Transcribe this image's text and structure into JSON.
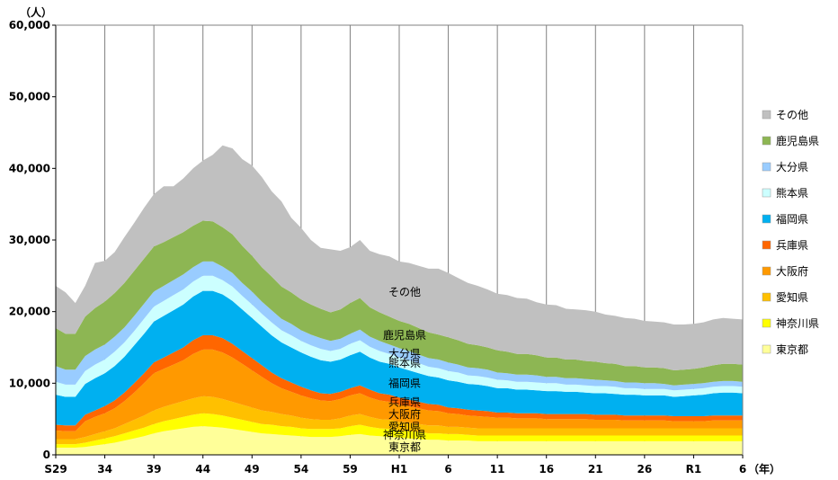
{
  "chart_data": {
    "type": "area",
    "stacked": true,
    "y_unit": "（人）",
    "x_unit": "（年）",
    "ylim": [
      0,
      60000
    ],
    "y_ticks": [
      "0",
      "10,000",
      "20,000",
      "30,000",
      "40,000",
      "50,000",
      "60,000"
    ],
    "x_tick_labels": [
      "S29",
      "34",
      "39",
      "44",
      "49",
      "54",
      "59",
      "H1",
      "6",
      "11",
      "16",
      "21",
      "26",
      "R1",
      "6"
    ],
    "grid": "vertical",
    "legend_position": "right",
    "x_years": [
      1954,
      1955,
      1956,
      1957,
      1958,
      1959,
      1960,
      1961,
      1962,
      1963,
      1964,
      1965,
      1966,
      1967,
      1968,
      1969,
      1970,
      1971,
      1972,
      1973,
      1974,
      1975,
      1976,
      1977,
      1978,
      1979,
      1980,
      1981,
      1982,
      1983,
      1984,
      1985,
      1986,
      1987,
      1988,
      1989,
      1990,
      1991,
      1992,
      1993,
      1994,
      1995,
      1996,
      1997,
      1998,
      1999,
      2000,
      2001,
      2002,
      2003,
      2004,
      2005,
      2006,
      2007,
      2008,
      2009,
      2010,
      2011,
      2012,
      2013,
      2014,
      2015,
      2016,
      2017,
      2018,
      2019,
      2020,
      2021,
      2022,
      2023,
      2024
    ],
    "series": [
      {
        "name": "東京都",
        "color": "#ffff99",
        "values": [
          1000,
          1000,
          1000,
          1100,
          1300,
          1500,
          1700,
          2000,
          2300,
          2600,
          3000,
          3300,
          3500,
          3700,
          3900,
          4000,
          3900,
          3800,
          3600,
          3400,
          3200,
          3000,
          2900,
          2800,
          2700,
          2600,
          2500,
          2500,
          2500,
          2600,
          2800,
          2900,
          2700,
          2600,
          2500,
          2400,
          2300,
          2200,
          2100,
          2100,
          2000,
          2000,
          2000,
          1900,
          1900,
          1900,
          1900,
          1900,
          1900,
          1900,
          1900,
          1900,
          1900,
          1900,
          1900,
          1900,
          1900,
          1900,
          1900,
          1900,
          1900,
          1900,
          1900,
          1900,
          1900,
          1900,
          1900,
          1900,
          1900,
          1900,
          1900
        ]
      },
      {
        "name": "神奈川県",
        "color": "#ffff00",
        "values": [
          500,
          500,
          500,
          600,
          700,
          800,
          900,
          1000,
          1100,
          1200,
          1300,
          1400,
          1500,
          1600,
          1700,
          1800,
          1800,
          1700,
          1600,
          1500,
          1400,
          1300,
          1300,
          1200,
          1200,
          1100,
          1100,
          1100,
          1100,
          1100,
          1200,
          1300,
          1200,
          1100,
          1100,
          1000,
          1000,
          1000,
          900,
          900,
          900,
          900,
          800,
          800,
          800,
          800,
          800,
          800,
          800,
          800,
          800,
          800,
          800,
          800,
          800,
          800,
          800,
          800,
          800,
          800,
          800,
          800,
          800,
          800,
          800,
          800,
          800,
          800,
          800,
          800,
          800
        ]
      },
      {
        "name": "愛知県",
        "color": "#ffc000",
        "values": [
          700,
          700,
          700,
          800,
          900,
          1000,
          1100,
          1300,
          1500,
          1700,
          1900,
          2000,
          2100,
          2200,
          2300,
          2400,
          2400,
          2300,
          2200,
          2100,
          2000,
          1900,
          1800,
          1700,
          1600,
          1500,
          1400,
          1300,
          1300,
          1400,
          1500,
          1500,
          1400,
          1300,
          1300,
          1200,
          1200,
          1100,
          1100,
          1100,
          1000,
          1000,
          1000,
          1000,
          1000,
          1000,
          1000,
          1000,
          1000,
          1000,
          1000,
          1000,
          1000,
          1000,
          1000,
          1000,
          1000,
          1000,
          1000,
          1000,
          1000,
          1000,
          1000,
          1000,
          1000,
          1000,
          1000,
          1000,
          1000,
          1000,
          1000
        ]
      },
      {
        "name": "大阪府",
        "color": "#ff9900",
        "values": [
          1200,
          1100,
          1100,
          2200,
          2400,
          2500,
          2800,
          3200,
          3800,
          4500,
          5200,
          5300,
          5500,
          5700,
          6200,
          6500,
          6600,
          6500,
          6200,
          5700,
          5200,
          4700,
          4000,
          3600,
          3300,
          3100,
          2900,
          2700,
          2600,
          2700,
          2800,
          2900,
          2700,
          2600,
          2500,
          2400,
          2300,
          2200,
          2100,
          2000,
          1900,
          1800,
          1700,
          1700,
          1600,
          1500,
          1500,
          1400,
          1400,
          1400,
          1300,
          1300,
          1300,
          1300,
          1300,
          1200,
          1200,
          1200,
          1100,
          1100,
          1100,
          1100,
          1100,
          1000,
          1000,
          1000,
          1000,
          1100,
          1100,
          1100,
          1100
        ]
      },
      {
        "name": "兵庫県",
        "color": "#ff6600",
        "values": [
          800,
          800,
          800,
          900,
          900,
          1000,
          1100,
          1200,
          1300,
          1400,
          1500,
          1600,
          1700,
          1800,
          1900,
          2000,
          2000,
          2000,
          1900,
          1800,
          1700,
          1600,
          1500,
          1400,
          1300,
          1200,
          1100,
          1000,
          1000,
          1000,
          1000,
          1100,
          1100,
          1000,
          1000,
          1000,
          900,
          900,
          900,
          900,
          800,
          800,
          800,
          800,
          800,
          700,
          700,
          700,
          700,
          700,
          700,
          700,
          700,
          700,
          700,
          700,
          700,
          700,
          700,
          700,
          700,
          700,
          700,
          700,
          700,
          700,
          700,
          700,
          700,
          700,
          700
        ]
      },
      {
        "name": "福岡県",
        "color": "#00b0f0",
        "values": [
          4200,
          4000,
          4000,
          4300,
          4500,
          4600,
          4800,
          5000,
          5300,
          5500,
          5700,
          5800,
          5900,
          6000,
          6100,
          6200,
          6200,
          6100,
          6000,
          5800,
          5600,
          5400,
          5200,
          5000,
          4900,
          4800,
          4700,
          4600,
          4500,
          4500,
          4600,
          4700,
          4500,
          4400,
          4300,
          4200,
          4100,
          4000,
          3900,
          3800,
          3800,
          3700,
          3600,
          3600,
          3500,
          3400,
          3400,
          3300,
          3300,
          3200,
          3200,
          3200,
          3100,
          3100,
          3000,
          3000,
          3000,
          2900,
          2900,
          2900,
          2800,
          2800,
          2800,
          2700,
          2800,
          2900,
          3000,
          3100,
          3200,
          3200,
          3100
        ]
      },
      {
        "name": "熊本県",
        "color": "#ccffff",
        "values": [
          1800,
          1700,
          1700,
          1800,
          1900,
          1900,
          2000,
          2000,
          2000,
          2100,
          2100,
          2100,
          2100,
          2100,
          2100,
          2100,
          2100,
          2000,
          2000,
          1900,
          1900,
          1800,
          1800,
          1700,
          1700,
          1600,
          1600,
          1600,
          1500,
          1500,
          1600,
          1600,
          1500,
          1500,
          1400,
          1400,
          1400,
          1400,
          1300,
          1300,
          1300,
          1300,
          1200,
          1200,
          1200,
          1200,
          1100,
          1100,
          1100,
          1100,
          1100,
          1100,
          1000,
          1000,
          1000,
          1000,
          1000,
          1000,
          900,
          900,
          900,
          900,
          900,
          900,
          900,
          900,
          900,
          900,
          900,
          900,
          900
        ]
      },
      {
        "name": "大分県",
        "color": "#99ccff",
        "values": [
          2200,
          2100,
          2100,
          2100,
          2100,
          2100,
          2100,
          2100,
          2100,
          2100,
          2100,
          2100,
          2100,
          2100,
          2000,
          2000,
          2000,
          1900,
          1900,
          1800,
          1800,
          1700,
          1700,
          1600,
          1600,
          1500,
          1500,
          1500,
          1400,
          1400,
          1400,
          1500,
          1400,
          1400,
          1300,
          1300,
          1300,
          1200,
          1200,
          1200,
          1200,
          1100,
          1100,
          1100,
          1100,
          1000,
          1000,
          1000,
          1000,
          1000,
          900,
          900,
          900,
          900,
          900,
          900,
          800,
          800,
          800,
          800,
          800,
          800,
          700,
          700,
          700,
          700,
          700,
          700,
          700,
          700,
          700
        ]
      },
      {
        "name": "鹿児島県",
        "color": "#8db653",
        "values": [
          5300,
          5000,
          5000,
          5500,
          5800,
          6000,
          6100,
          6200,
          6300,
          6300,
          6300,
          6100,
          6000,
          5900,
          5800,
          5700,
          5600,
          5500,
          5400,
          5200,
          5000,
          4800,
          4700,
          4500,
          4400,
          4300,
          4200,
          4100,
          4000,
          4100,
          4300,
          4400,
          4100,
          4000,
          3900,
          3800,
          3800,
          3700,
          3600,
          3500,
          3500,
          3400,
          3300,
          3200,
          3100,
          3100,
          3000,
          2900,
          2900,
          2800,
          2700,
          2700,
          2600,
          2600,
          2500,
          2500,
          2400,
          2400,
          2300,
          2300,
          2200,
          2200,
          2200,
          2100,
          2100,
          2100,
          2200,
          2300,
          2400,
          2400,
          2400
        ]
      },
      {
        "name": "その他",
        "color": "#c0c0c0",
        "values": [
          5900,
          5800,
          4300,
          4300,
          6300,
          5700,
          5700,
          6400,
          6700,
          7100,
          7300,
          7800,
          7100,
          7500,
          8000,
          8400,
          9300,
          11400,
          12000,
          12100,
          12600,
          12600,
          11900,
          11900,
          10400,
          10000,
          9000,
          8500,
          8800,
          8200,
          7800,
          8100,
          7900,
          8100,
          8400,
          8300,
          8500,
          8700,
          8900,
          9200,
          9000,
          8700,
          8500,
          8300,
          8100,
          7900,
          7900,
          7800,
          7700,
          7400,
          7400,
          7300,
          7100,
          7000,
          7100,
          7000,
          6800,
          6700,
          6700,
          6600,
          6500,
          6400,
          6400,
          6400,
          6300,
          6300,
          6300,
          6400,
          6400,
          6300,
          6300
        ]
      }
    ],
    "area_labels": [
      "その他",
      "鹿児島県",
      "大分県",
      "熊本県",
      "福岡県",
      "兵庫県",
      "大阪府",
      "愛知県",
      "神奈川県",
      "東京都"
    ]
  }
}
